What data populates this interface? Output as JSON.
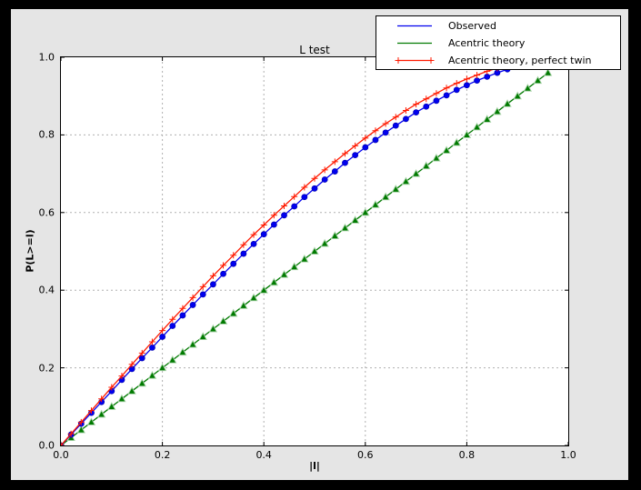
{
  "window": {
    "outer_background": "#000000",
    "figure_background": "#e5e5e5",
    "plot_background": "#ffffff"
  },
  "chart_data": {
    "type": "line",
    "title": "L test",
    "xlabel": "|l|",
    "ylabel": "P(L>=l)",
    "xlim": [
      0.0,
      1.0
    ],
    "ylim": [
      0.0,
      1.0
    ],
    "grid": true,
    "grid_color": "#b0b0b0",
    "legend_position": "upper right",
    "xticks": [
      "0.0",
      "0.2",
      "0.4",
      "0.6",
      "0.8",
      "1.0"
    ],
    "yticks": [
      "0.0",
      "0.2",
      "0.4",
      "0.6",
      "0.8",
      "1.0"
    ],
    "x": [
      0,
      0.02,
      0.04,
      0.06,
      0.08,
      0.1,
      0.12,
      0.14,
      0.16,
      0.18,
      0.2,
      0.22,
      0.24,
      0.26,
      0.28,
      0.3,
      0.32,
      0.34,
      0.36,
      0.38,
      0.4,
      0.42,
      0.44,
      0.46,
      0.48,
      0.5,
      0.52,
      0.54,
      0.56,
      0.58,
      0.6,
      0.62,
      0.64,
      0.66,
      0.68,
      0.7,
      0.72,
      0.74,
      0.76,
      0.78,
      0.8,
      0.82,
      0.84,
      0.86,
      0.88,
      0.9,
      0.92,
      0.94,
      0.96
    ],
    "series": [
      {
        "name": "Observed",
        "color": "#0000ee",
        "marker": "circle",
        "legend_marker": false,
        "values": [
          0,
          0.028,
          0.056,
          0.084,
          0.112,
          0.14,
          0.169,
          0.197,
          0.225,
          0.252,
          0.28,
          0.308,
          0.335,
          0.362,
          0.389,
          0.415,
          0.442,
          0.468,
          0.494,
          0.519,
          0.544,
          0.569,
          0.593,
          0.616,
          0.64,
          0.662,
          0.685,
          0.706,
          0.728,
          0.748,
          0.768,
          0.787,
          0.806,
          0.824,
          0.841,
          0.858,
          0.873,
          0.888,
          0.902,
          0.916,
          0.928,
          0.94,
          0.95,
          0.96,
          0.969,
          0.977,
          0.983,
          0.989,
          0.994
        ]
      },
      {
        "name": "Acentric theory",
        "color": "#007a00",
        "marker": "triangle",
        "legend_marker": false,
        "values": [
          0,
          0.02,
          0.04,
          0.06,
          0.08,
          0.1,
          0.12,
          0.14,
          0.16,
          0.18,
          0.2,
          0.22,
          0.24,
          0.26,
          0.28,
          0.3,
          0.32,
          0.34,
          0.36,
          0.38,
          0.4,
          0.42,
          0.44,
          0.46,
          0.48,
          0.5,
          0.52,
          0.54,
          0.56,
          0.58,
          0.6,
          0.62,
          0.64,
          0.66,
          0.68,
          0.7,
          0.72,
          0.74,
          0.76,
          0.78,
          0.8,
          0.82,
          0.84,
          0.86,
          0.88,
          0.9,
          0.92,
          0.94,
          0.96
        ]
      },
      {
        "name": "Acentric theory, perfect twin",
        "color": "#ff1a00",
        "marker": "plus",
        "legend_marker": true,
        "values": [
          0,
          0.03,
          0.06,
          0.09,
          0.12,
          0.15,
          0.179,
          0.209,
          0.238,
          0.267,
          0.296,
          0.325,
          0.353,
          0.381,
          0.409,
          0.437,
          0.464,
          0.49,
          0.517,
          0.543,
          0.568,
          0.593,
          0.617,
          0.641,
          0.665,
          0.688,
          0.71,
          0.731,
          0.752,
          0.772,
          0.792,
          0.811,
          0.829,
          0.846,
          0.863,
          0.879,
          0.893,
          0.907,
          0.921,
          0.933,
          0.944,
          0.954,
          0.964,
          0.972,
          0.979,
          0.986,
          0.991,
          0.995,
          0.998
        ]
      }
    ]
  }
}
